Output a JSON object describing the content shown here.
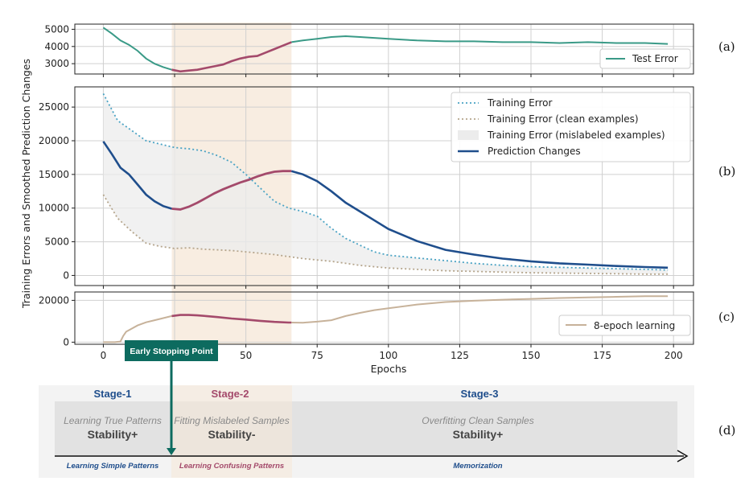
{
  "colors": {
    "test_error": "#3a9a87",
    "train_error": "#4aa3c4",
    "train_clean": "#b5a58c",
    "train_mislabeled_fill": "#ececec",
    "prediction_changes": "#1f4e8c",
    "highlight": "#a44a6b",
    "learning_8": "#c7b29a",
    "stage_shade": "#f6e7d7",
    "stage1": "#1f4e8c",
    "stage2": "#a44a6b",
    "early_stop": "#0d6b5f"
  },
  "panel_labels": [
    "(a)",
    "(b)",
    "(c)",
    "(d)"
  ],
  "chart_data": [
    {
      "type": "line",
      "panel": "(a)",
      "xlim": [
        -10,
        207
      ],
      "ylim": [
        2400,
        5300
      ],
      "yticks": [
        3000,
        4000,
        5000
      ],
      "legend": "Test Error",
      "legend_position": "bottom-right",
      "series": [
        {
          "name": "Test Error",
          "x": [
            0,
            3,
            6,
            9,
            12,
            15,
            18,
            21,
            24,
            27,
            30,
            33,
            36,
            39,
            42,
            45,
            48,
            51,
            54,
            57,
            60,
            63,
            66,
            70,
            75,
            80,
            85,
            90,
            95,
            100,
            110,
            120,
            130,
            140,
            150,
            160,
            170,
            180,
            190,
            198
          ],
          "y": [
            5100,
            4750,
            4350,
            4100,
            3750,
            3300,
            3000,
            2800,
            2650,
            2550,
            2600,
            2650,
            2750,
            2850,
            2950,
            3150,
            3300,
            3400,
            3450,
            3650,
            3850,
            4050,
            4250,
            4350,
            4450,
            4550,
            4600,
            4550,
            4500,
            4450,
            4350,
            4300,
            4300,
            4250,
            4250,
            4200,
            4250,
            4200,
            4200,
            4150
          ]
        }
      ]
    },
    {
      "type": "line",
      "panel": "(b)",
      "xlim": [
        -10,
        207
      ],
      "ylim": [
        -1500,
        28000
      ],
      "yticks": [
        0,
        5000,
        10000,
        15000,
        20000,
        25000
      ],
      "ylabel": "Training Errors and Smoothed Prediction Changes",
      "legend_position": "top-right",
      "series": [
        {
          "name": "Training Error",
          "x": [
            0,
            5,
            10,
            15,
            20,
            25,
            30,
            35,
            40,
            45,
            50,
            55,
            60,
            65,
            70,
            75,
            80,
            85,
            90,
            95,
            100,
            110,
            120,
            130,
            140,
            150,
            160,
            170,
            180,
            190,
            198
          ],
          "y": [
            27000,
            23000,
            21500,
            20000,
            19500,
            19000,
            18800,
            18500,
            17800,
            16800,
            15000,
            13000,
            11000,
            10000,
            9500,
            8800,
            7000,
            5500,
            4500,
            3500,
            3000,
            2600,
            2200,
            1800,
            1500,
            1300,
            1200,
            1100,
            1000,
            900,
            800
          ]
        },
        {
          "name": "Training Error (clean examples)",
          "x": [
            0,
            5,
            10,
            15,
            20,
            25,
            30,
            35,
            40,
            45,
            50,
            55,
            60,
            65,
            70,
            75,
            80,
            85,
            90,
            95,
            100,
            110,
            120,
            130,
            140,
            150,
            160,
            170,
            180,
            190,
            198
          ],
          "y": [
            12000,
            8500,
            6500,
            4800,
            4300,
            4000,
            4100,
            3900,
            3800,
            3700,
            3500,
            3300,
            3100,
            2800,
            2500,
            2300,
            2100,
            1800,
            1500,
            1300,
            1100,
            900,
            700,
            600,
            500,
            400,
            350,
            300,
            250,
            200,
            200
          ]
        },
        {
          "name": "Training Error (mislabeled examples)",
          "kind": "fill_between"
        },
        {
          "name": "Prediction Changes",
          "x": [
            0,
            3,
            6,
            9,
            12,
            15,
            18,
            21,
            24,
            27,
            30,
            33,
            36,
            39,
            42,
            45,
            48,
            51,
            54,
            57,
            60,
            63,
            66,
            70,
            75,
            80,
            85,
            90,
            95,
            100,
            110,
            120,
            130,
            140,
            150,
            160,
            170,
            180,
            190,
            198
          ],
          "y": [
            19900,
            18000,
            16000,
            15000,
            13500,
            12000,
            11000,
            10300,
            9900,
            9800,
            10200,
            10800,
            11500,
            12200,
            12800,
            13300,
            13800,
            14200,
            14700,
            15100,
            15400,
            15500,
            15500,
            15000,
            14000,
            12500,
            10800,
            9500,
            8200,
            6900,
            5100,
            3800,
            3100,
            2500,
            2100,
            1800,
            1600,
            1400,
            1250,
            1150
          ]
        }
      ]
    },
    {
      "type": "line",
      "panel": "(c)",
      "xlim": [
        -10,
        207
      ],
      "ylim": [
        -1000,
        24000
      ],
      "yticks": [
        0,
        20000
      ],
      "xticks": [
        0,
        25,
        50,
        75,
        100,
        125,
        150,
        175,
        200
      ],
      "xlabel": "Epochs",
      "legend": "8-epoch learning",
      "legend_position": "bottom-right",
      "series": [
        {
          "name": "8-epoch learning",
          "x": [
            0,
            4,
            6,
            7,
            8,
            10,
            12,
            15,
            18,
            21,
            24,
            27,
            30,
            33,
            36,
            40,
            45,
            50,
            55,
            60,
            65,
            70,
            75,
            80,
            85,
            90,
            95,
            100,
            110,
            120,
            130,
            140,
            150,
            160,
            170,
            180,
            190,
            198
          ],
          "y": [
            0,
            0,
            300,
            3000,
            5000,
            6500,
            8000,
            9500,
            10500,
            11500,
            12500,
            13000,
            13000,
            12800,
            12500,
            12000,
            11300,
            10800,
            10200,
            9700,
            9400,
            9300,
            9800,
            10500,
            12500,
            14000,
            15300,
            16200,
            18000,
            19200,
            19800,
            20300,
            20700,
            21100,
            21400,
            21700,
            22000,
            22000
          ]
        }
      ]
    }
  ],
  "legend_b": {
    "training_error": "Training Error",
    "clean": "Training Error (clean examples)",
    "mislabeled": "Training Error (mislabeled examples)",
    "prediction": "Prediction Changes"
  },
  "axis": {
    "xlabel": "Epochs",
    "ylabel": "Training Errors and Smoothed Prediction Changes"
  },
  "stage_region": {
    "start_epoch": 24,
    "end_epoch": 66
  },
  "early_stop_label": "Early Stopping Point",
  "stages": [
    {
      "title": "Stage-1",
      "subtitle": "Learning True Patterns",
      "stability": "Stability+",
      "footer": "Learning Simple Patterns"
    },
    {
      "title": "Stage-2",
      "subtitle": "Fitting Mislabeled Samples",
      "stability": "Stability-",
      "footer": "Learning Confusing Patterns"
    },
    {
      "title": "Stage-3",
      "subtitle": "Overfitting Clean Samples",
      "stability": "Stability+",
      "footer": "Memorization"
    }
  ]
}
